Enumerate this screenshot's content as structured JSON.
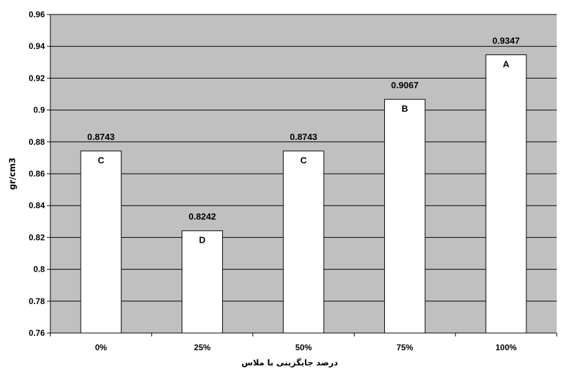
{
  "chart_data": {
    "type": "bar",
    "categories": [
      "0%",
      "25%",
      "50%",
      "75%",
      "100%"
    ],
    "values": [
      0.8743,
      0.8242,
      0.8743,
      0.9067,
      0.9347
    ],
    "value_labels": [
      "0.8743",
      "0.8242",
      "0.8743",
      "0.9067",
      "0.9347"
    ],
    "group_letters": [
      "C",
      "D",
      "C",
      "B",
      "A"
    ],
    "title": "",
    "xlabel": "درصد جایگزینی با ملاس",
    "ylabel": "gr/cm3",
    "ylim": [
      0.76,
      0.96
    ],
    "yticks": [
      0.76,
      0.78,
      0.8,
      0.82,
      0.84,
      0.86,
      0.88,
      0.9,
      0.92,
      0.94,
      0.96
    ],
    "ytick_labels": [
      "0.76",
      "0.78",
      "0.8",
      "0.82",
      "0.84",
      "0.86",
      "0.88",
      "0.9",
      "0.92",
      "0.94",
      "0.96"
    ],
    "grid": true,
    "legend": false,
    "colors": {
      "plot_background": "#c0c0c0",
      "bar_fill": "#ffffff",
      "bar_stroke": "#000000",
      "gridline": "#000000"
    }
  }
}
